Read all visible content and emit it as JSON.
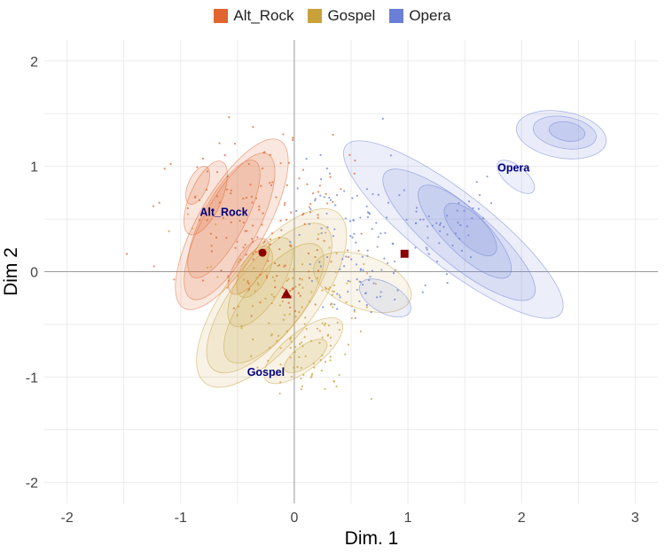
{
  "chart_data": {
    "type": "scatter",
    "title": "",
    "xlabel": "Dim. 1",
    "ylabel": "Dim 2",
    "xlim": [
      -2.2,
      3.2
    ],
    "ylim": [
      -2.2,
      2.2
    ],
    "x_ticks": [
      -2,
      -1,
      0,
      1,
      2,
      3
    ],
    "y_ticks": [
      -2,
      -1,
      0,
      1,
      2
    ],
    "x_tick_labels": [
      "-2",
      "-1",
      "0",
      "1",
      "2",
      "3"
    ],
    "y_tick_labels": [
      "-2",
      "-1",
      "0",
      "1",
      "2"
    ],
    "grid": true,
    "legend_position": "top",
    "series": [
      {
        "name": "Alt_Rock",
        "color": "#E0652F",
        "centroid": {
          "x": -0.28,
          "y": 0.18,
          "marker": "circle"
        },
        "label": {
          "text": "Alt_Rock",
          "x": -0.62,
          "y": 0.53
        },
        "density_peaks": [
          {
            "x": -0.85,
            "y": 0.8
          },
          {
            "x": -0.4,
            "y": 0.1
          }
        ]
      },
      {
        "name": "Gospel",
        "color": "#C9A13A",
        "centroid": {
          "x": -0.07,
          "y": -0.21,
          "marker": "triangle"
        },
        "label": {
          "text": "Gospel",
          "x": -0.25,
          "y": -0.99
        },
        "density_peaks": [
          {
            "x": -0.4,
            "y": -0.1
          },
          {
            "x": 0.1,
            "y": -0.8
          }
        ]
      },
      {
        "name": "Opera",
        "color": "#6B7FD7",
        "centroid": {
          "x": 0.97,
          "y": 0.17,
          "marker": "square"
        },
        "label": {
          "text": "Opera",
          "x": 1.93,
          "y": 0.95
        },
        "density_peaks": [
          {
            "x": 2.4,
            "y": 1.35
          },
          {
            "x": 1.5,
            "y": 0.4
          }
        ]
      }
    ],
    "reference_lines": {
      "x": 0,
      "y": 0
    }
  }
}
